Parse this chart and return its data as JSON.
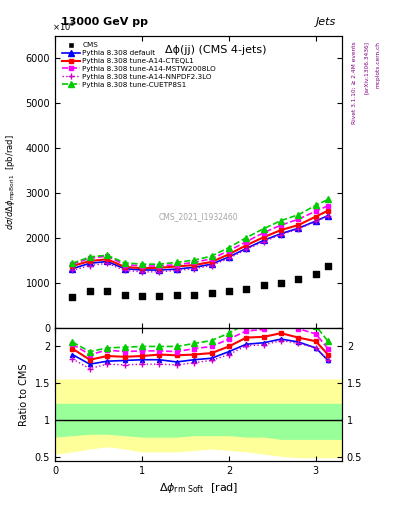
{
  "title_top": "13000 GeV pp",
  "title_right": "Jets",
  "plot_title": "Δϕ(jj) (CMS 4-jets)",
  "ylabel_main": "dσ/dΔϕ_mpBori1  [pb/rad]",
  "ylabel_ratio": "Ratio to CMS",
  "watermark": "CMS_2021_I1932460",
  "rivet_text": "Rivet 3.1.10; ≥ 2.4M events",
  "arxiv_text": "[arXiv:1306.3436]",
  "mcplots_text": "mcplots.cern.ch",
  "x_data": [
    0.2,
    0.4,
    0.6,
    0.8,
    1.0,
    1.2,
    1.4,
    1.6,
    1.8,
    2.0,
    2.2,
    2.4,
    2.6,
    2.8,
    3.0,
    3.14
  ],
  "cms_data": [
    700,
    820,
    820,
    730,
    710,
    710,
    730,
    740,
    770,
    820,
    870,
    950,
    1000,
    1080,
    1200,
    1380
  ],
  "pythia_default": [
    1320,
    1440,
    1480,
    1320,
    1290,
    1290,
    1310,
    1350,
    1420,
    1580,
    1770,
    1950,
    2100,
    2220,
    2380,
    2500
  ],
  "pythia_cteql1": [
    1380,
    1490,
    1530,
    1360,
    1330,
    1340,
    1370,
    1400,
    1470,
    1640,
    1840,
    2020,
    2180,
    2290,
    2480,
    2610
  ],
  "pythia_mstw": [
    1420,
    1550,
    1600,
    1410,
    1380,
    1380,
    1410,
    1460,
    1540,
    1720,
    1920,
    2120,
    2290,
    2420,
    2600,
    2720
  ],
  "pythia_nnpdf": [
    1280,
    1390,
    1440,
    1280,
    1250,
    1250,
    1280,
    1320,
    1390,
    1550,
    1750,
    1920,
    2080,
    2200,
    2370,
    2490
  ],
  "pythia_cuetp": [
    1440,
    1580,
    1620,
    1450,
    1420,
    1420,
    1460,
    1510,
    1600,
    1790,
    2010,
    2210,
    2390,
    2520,
    2730,
    2860
  ],
  "ratio_default": [
    1.89,
    1.76,
    1.8,
    1.81,
    1.82,
    1.82,
    1.79,
    1.82,
    1.84,
    1.93,
    2.03,
    2.05,
    2.1,
    2.06,
    1.98,
    1.81
  ],
  "ratio_cteql1": [
    1.97,
    1.82,
    1.87,
    1.86,
    1.87,
    1.89,
    1.88,
    1.89,
    1.91,
    2.0,
    2.12,
    2.13,
    2.18,
    2.12,
    2.07,
    1.89
  ],
  "ratio_mstw": [
    2.03,
    1.89,
    1.95,
    1.93,
    1.94,
    1.94,
    1.93,
    1.97,
    2.0,
    2.1,
    2.21,
    2.23,
    2.29,
    2.24,
    2.17,
    1.97
  ],
  "ratio_nnpdf": [
    1.83,
    1.7,
    1.76,
    1.75,
    1.76,
    1.76,
    1.75,
    1.78,
    1.81,
    1.89,
    2.01,
    2.02,
    2.08,
    2.04,
    1.98,
    1.81
  ],
  "ratio_cuetp": [
    2.06,
    1.93,
    1.98,
    1.99,
    2.0,
    2.0,
    2.0,
    2.04,
    2.08,
    2.18,
    2.31,
    2.33,
    2.39,
    2.33,
    2.28,
    2.07
  ],
  "color_default": "#0000ff",
  "color_cteql1": "#ff0000",
  "color_mstw": "#ff00ff",
  "color_nnpdf": "#cc00cc",
  "color_cuetp": "#00cc00",
  "color_cms": "#000000",
  "ylim_main": [
    0,
    6500
  ],
  "ylim_ratio": [
    0.45,
    2.25
  ],
  "xlim": [
    0.0,
    3.3
  ],
  "ratio_yticks": [
    0.5,
    1.0,
    1.5,
    2.0
  ],
  "x_band": [
    0.0,
    0.2,
    0.4,
    0.6,
    0.8,
    1.0,
    1.2,
    1.4,
    1.6,
    1.8,
    2.0,
    2.2,
    2.4,
    2.6,
    2.8,
    3.0,
    3.14,
    3.3
  ],
  "yellow_lo": [
    0.55,
    0.58,
    0.62,
    0.65,
    0.62,
    0.58,
    0.58,
    0.58,
    0.6,
    0.62,
    0.6,
    0.58,
    0.55,
    0.52,
    0.5,
    0.5,
    0.5,
    0.5
  ],
  "yellow_hi": [
    1.55,
    1.55,
    1.55,
    1.55,
    1.55,
    1.55,
    1.55,
    1.55,
    1.55,
    1.55,
    1.55,
    1.55,
    1.55,
    1.55,
    1.55,
    1.55,
    1.55,
    1.55
  ],
  "green_lo": [
    0.78,
    0.8,
    0.82,
    0.82,
    0.8,
    0.78,
    0.78,
    0.78,
    0.8,
    0.8,
    0.8,
    0.78,
    0.78,
    0.75,
    0.75,
    0.75,
    0.75,
    0.75
  ],
  "green_hi": [
    1.22,
    1.22,
    1.22,
    1.22,
    1.22,
    1.22,
    1.22,
    1.22,
    1.22,
    1.22,
    1.22,
    1.22,
    1.22,
    1.22,
    1.22,
    1.22,
    1.22,
    1.22
  ]
}
